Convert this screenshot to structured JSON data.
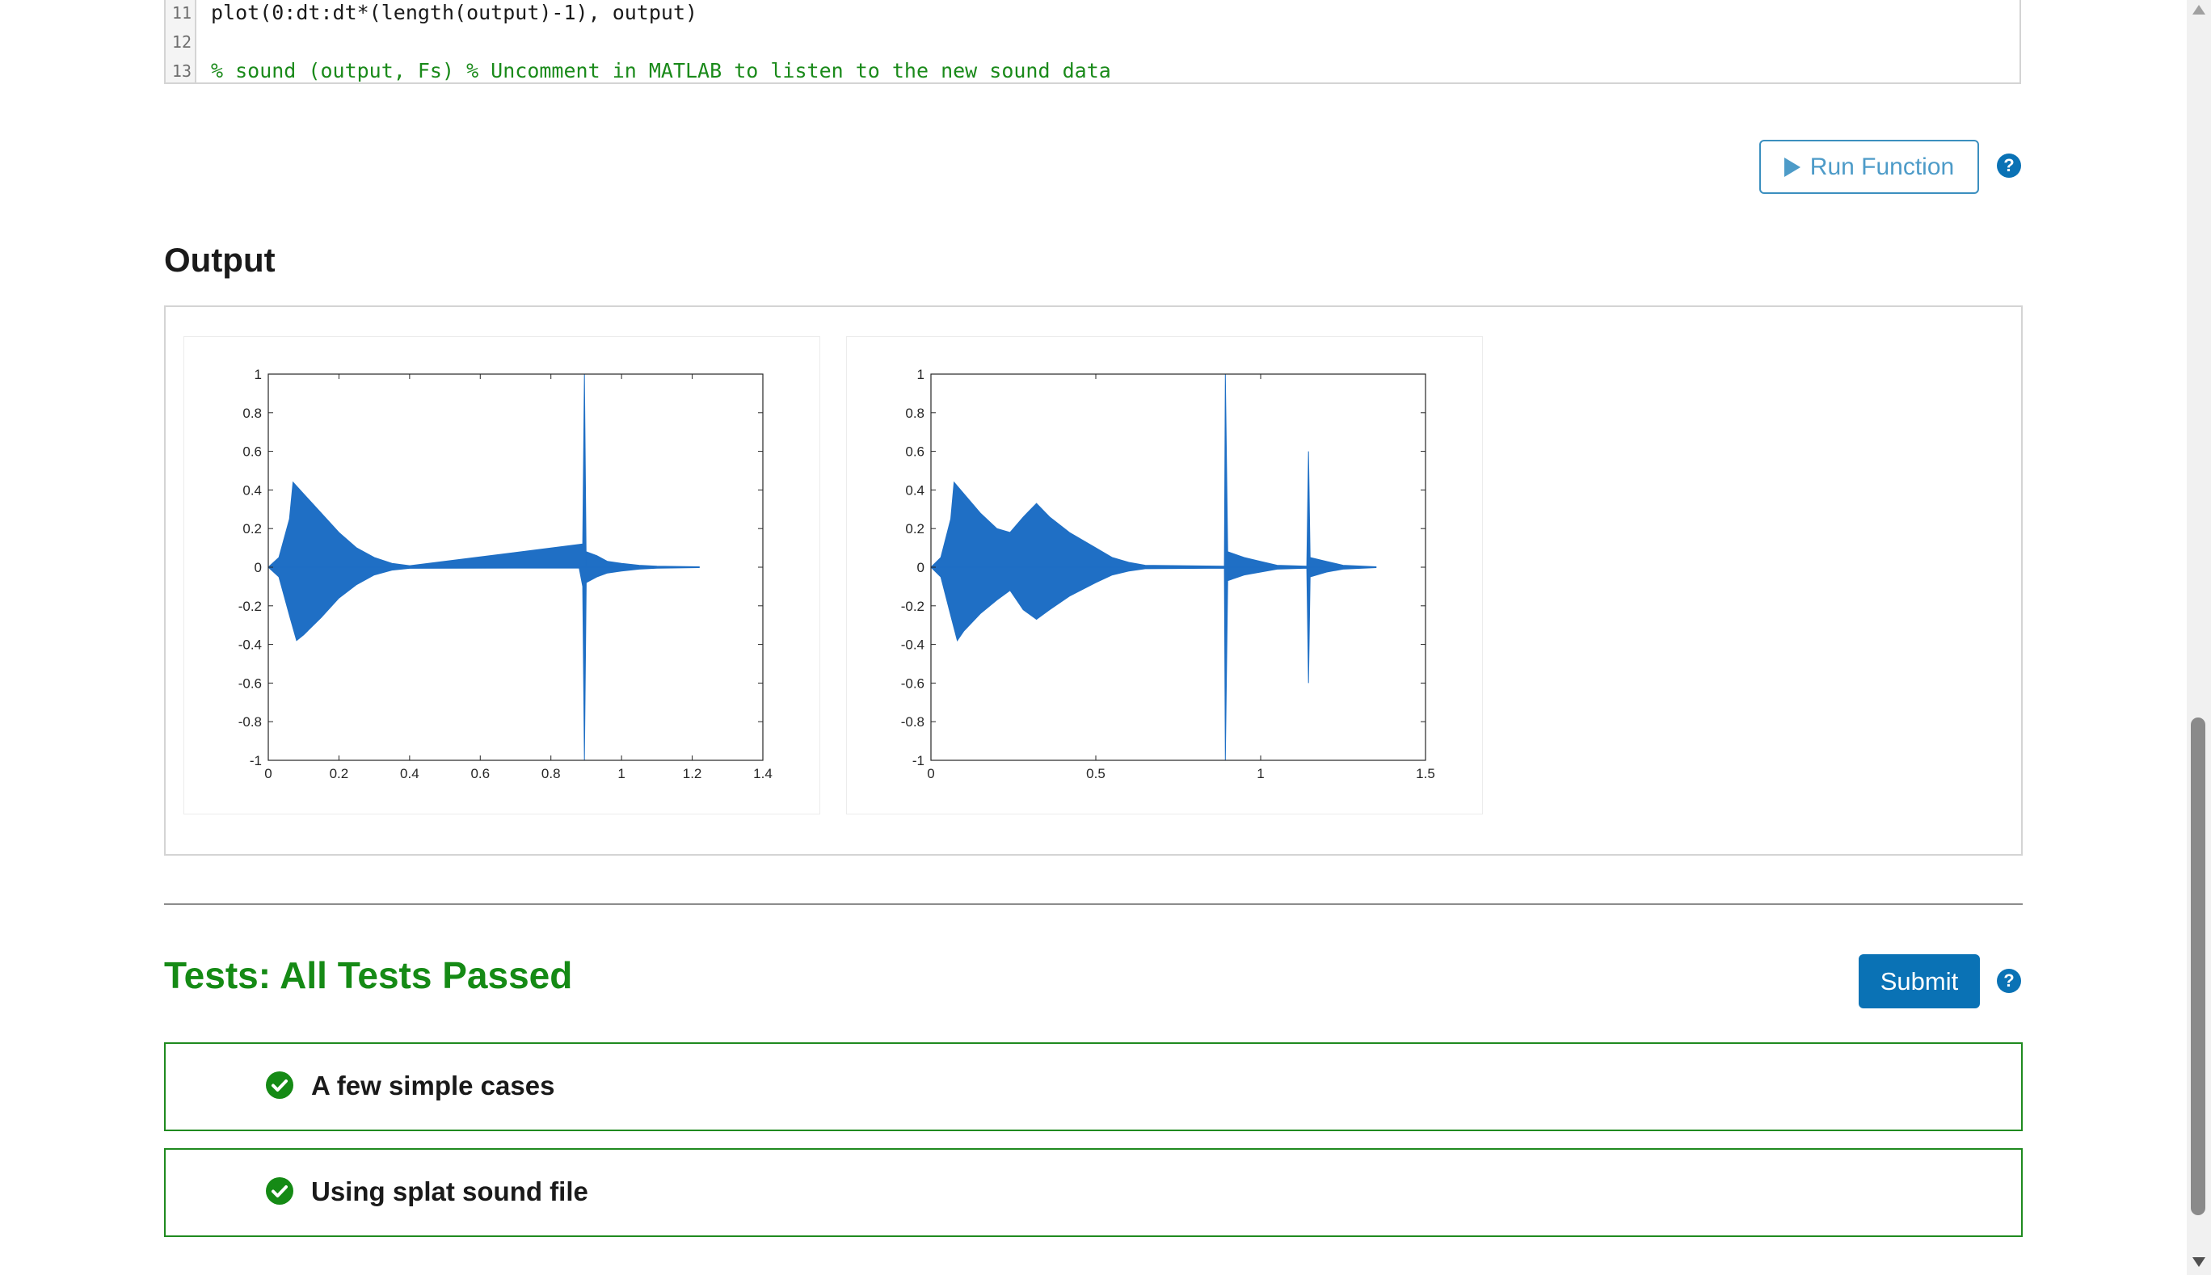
{
  "code": {
    "lines": [
      {
        "num": "11",
        "text": "plot(0:dt:dt*(length(output)-1), output)"
      },
      {
        "num": "12",
        "text": ""
      },
      {
        "num": "13",
        "text": "% sound (output, Fs) % Uncomment in MATLAB to listen to the new sound data"
      }
    ]
  },
  "run": {
    "label": "Run Function",
    "help": "?"
  },
  "output": {
    "heading": "Output"
  },
  "tests": {
    "heading": "Tests: All Tests Passed",
    "submit_label": "Submit",
    "help": "?",
    "items": [
      {
        "label": "A few simple cases"
      },
      {
        "label": "Using splat sound file"
      }
    ]
  },
  "colors": {
    "accent": "#0a72b5",
    "pass": "#158a15",
    "series": "#1f6fc5"
  },
  "chart_data": [
    {
      "type": "line",
      "title": "",
      "xlabel": "",
      "ylabel": "",
      "xlim": [
        0,
        1.4
      ],
      "ylim": [
        -1,
        1
      ],
      "xticks": [
        "0",
        "0.2",
        "0.4",
        "0.6",
        "0.8",
        "1",
        "1.2",
        "1.4"
      ],
      "yticks": [
        "1",
        "0.8",
        "0.6",
        "0.4",
        "0.2",
        "0",
        "-0.2",
        "-0.4",
        "-0.6",
        "-0.8",
        "-1"
      ],
      "grid": false,
      "series": [
        {
          "envelope_top": [
            [
              0,
              0
            ],
            [
              0.03,
              0.05
            ],
            [
              0.06,
              0.25
            ],
            [
              0.07,
              0.44
            ],
            [
              0.1,
              0.38
            ],
            [
              0.15,
              0.28
            ],
            [
              0.2,
              0.18
            ],
            [
              0.25,
              0.1
            ],
            [
              0.3,
              0.05
            ],
            [
              0.35,
              0.02
            ],
            [
              0.4,
              0.008
            ],
            [
              0.9,
              0.005
            ],
            [
              0.89,
              0.12
            ],
            [
              0.895,
              1.0
            ],
            [
              0.9,
              0.08
            ],
            [
              0.93,
              0.06
            ],
            [
              0.96,
              0.03
            ],
            [
              1.0,
              0.02
            ],
            [
              1.05,
              0.01
            ],
            [
              1.1,
              0.005
            ],
            [
              1.22,
              0.002
            ]
          ],
          "envelope_bottom": [
            [
              0,
              0
            ],
            [
              0.03,
              -0.05
            ],
            [
              0.06,
              -0.25
            ],
            [
              0.08,
              -0.38
            ],
            [
              0.1,
              -0.35
            ],
            [
              0.15,
              -0.26
            ],
            [
              0.2,
              -0.16
            ],
            [
              0.25,
              -0.09
            ],
            [
              0.3,
              -0.04
            ],
            [
              0.35,
              -0.015
            ],
            [
              0.4,
              -0.006
            ],
            [
              0.88,
              -0.004
            ],
            [
              0.89,
              -0.1
            ],
            [
              0.895,
              -1.0
            ],
            [
              0.9,
              -0.08
            ],
            [
              0.93,
              -0.05
            ],
            [
              0.96,
              -0.03
            ],
            [
              1.0,
              -0.02
            ],
            [
              1.05,
              -0.01
            ],
            [
              1.1,
              -0.005
            ],
            [
              1.22,
              -0.002
            ]
          ]
        }
      ]
    },
    {
      "type": "line",
      "title": "",
      "xlabel": "",
      "ylabel": "",
      "xlim": [
        0,
        1.5
      ],
      "ylim": [
        -1,
        1
      ],
      "xticks": [
        "0",
        "0.5",
        "1",
        "1.5"
      ],
      "yticks": [
        "1",
        "0.8",
        "0.6",
        "0.4",
        "0.2",
        "0",
        "-0.2",
        "-0.4",
        "-0.6",
        "-0.8",
        "-1"
      ],
      "grid": false,
      "series": [
        {
          "envelope_top": [
            [
              0,
              0
            ],
            [
              0.03,
              0.05
            ],
            [
              0.06,
              0.25
            ],
            [
              0.07,
              0.44
            ],
            [
              0.1,
              0.38
            ],
            [
              0.15,
              0.28
            ],
            [
              0.2,
              0.2
            ],
            [
              0.24,
              0.18
            ],
            [
              0.28,
              0.26
            ],
            [
              0.32,
              0.33
            ],
            [
              0.36,
              0.26
            ],
            [
              0.42,
              0.18
            ],
            [
              0.5,
              0.1
            ],
            [
              0.55,
              0.05
            ],
            [
              0.6,
              0.025
            ],
            [
              0.65,
              0.01
            ],
            [
              0.89,
              0.005
            ],
            [
              0.893,
              1.0
            ],
            [
              0.9,
              0.08
            ],
            [
              0.95,
              0.05
            ],
            [
              1.0,
              0.03
            ],
            [
              1.05,
              0.01
            ],
            [
              1.14,
              0.005
            ],
            [
              1.145,
              0.6
            ],
            [
              1.15,
              0.05
            ],
            [
              1.2,
              0.03
            ],
            [
              1.25,
              0.01
            ],
            [
              1.35,
              0.002
            ]
          ],
          "envelope_bottom": [
            [
              0,
              0
            ],
            [
              0.03,
              -0.05
            ],
            [
              0.06,
              -0.25
            ],
            [
              0.08,
              -0.38
            ],
            [
              0.1,
              -0.33
            ],
            [
              0.15,
              -0.24
            ],
            [
              0.2,
              -0.17
            ],
            [
              0.24,
              -0.12
            ],
            [
              0.28,
              -0.22
            ],
            [
              0.32,
              -0.27
            ],
            [
              0.36,
              -0.22
            ],
            [
              0.42,
              -0.15
            ],
            [
              0.5,
              -0.08
            ],
            [
              0.55,
              -0.04
            ],
            [
              0.6,
              -0.02
            ],
            [
              0.65,
              -0.008
            ],
            [
              0.89,
              -0.005
            ],
            [
              0.893,
              -1.0
            ],
            [
              0.9,
              -0.07
            ],
            [
              0.95,
              -0.04
            ],
            [
              1.0,
              -0.025
            ],
            [
              1.05,
              -0.01
            ],
            [
              1.14,
              -0.005
            ],
            [
              1.145,
              -0.6
            ],
            [
              1.15,
              -0.05
            ],
            [
              1.2,
              -0.025
            ],
            [
              1.25,
              -0.01
            ],
            [
              1.35,
              -0.002
            ]
          ]
        }
      ]
    }
  ]
}
